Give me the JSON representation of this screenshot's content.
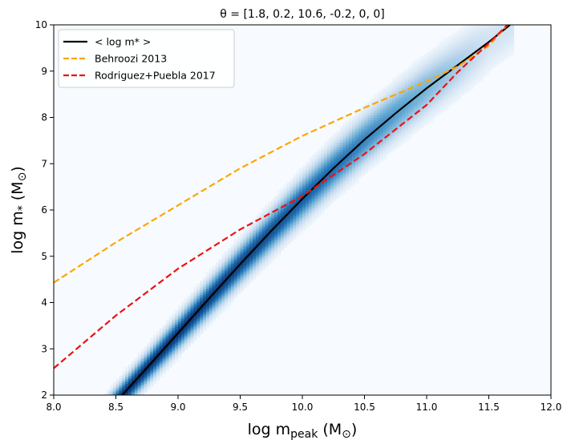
{
  "chart_data": {
    "type": "line",
    "title": "θ = [1.8, 0.2, 10.6, -0.2, 0, 0]",
    "xlabel": "log m",
    "xlabel_sub": "peak",
    "xlabel_unit": "(M",
    "xlabel_unit_sub": "⊙",
    "xlabel_close": ")",
    "ylabel": "log m",
    "ylabel_sub": "*",
    "ylabel_unit": "(M",
    "ylabel_unit_sub": "⊙",
    "ylabel_close": ")",
    "xlim": [
      8.0,
      12.0
    ],
    "ylim": [
      2,
      10
    ],
    "xticks": [
      "8.0",
      "8.5",
      "9.0",
      "9.5",
      "10.0",
      "10.5",
      "11.0",
      "11.5",
      "12.0"
    ],
    "yticks": [
      "2",
      "3",
      "4",
      "5",
      "6",
      "7",
      "8",
      "9",
      "10"
    ],
    "grid": false,
    "legend_position": "top-left",
    "background_heatmap": {
      "colormap": "Blues",
      "description_ridge_x": [
        8.3,
        11.7
      ]
    },
    "series": [
      {
        "name": "< log m* >",
        "color": "#000000",
        "style": "solid",
        "x": [
          8.55,
          8.75,
          9.0,
          9.25,
          9.5,
          9.75,
          10.0,
          10.25,
          10.5,
          10.75,
          11.0,
          11.25,
          11.5,
          11.67
        ],
        "y": [
          2.0,
          2.59,
          3.34,
          4.09,
          4.83,
          5.55,
          6.24,
          6.9,
          7.52,
          8.09,
          8.63,
          9.13,
          9.63,
          10.0
        ]
      },
      {
        "name": "Behroozi 2013",
        "color": "#FFA500",
        "style": "dashed",
        "x": [
          8.0,
          8.5,
          9.0,
          9.5,
          10.0,
          10.5,
          11.0,
          11.25,
          11.5,
          11.65
        ],
        "y": [
          4.43,
          5.3,
          6.1,
          6.9,
          7.6,
          8.21,
          8.78,
          9.1,
          9.55,
          10.0
        ]
      },
      {
        "name": "Rodriguez+Puebla 2017",
        "color": "#EE1111",
        "style": "dashed",
        "x": [
          8.0,
          8.5,
          9.0,
          9.5,
          10.0,
          10.5,
          11.0,
          11.25,
          11.5,
          11.65
        ],
        "y": [
          2.58,
          3.72,
          4.73,
          5.58,
          6.3,
          7.21,
          8.27,
          8.98,
          9.6,
          10.0
        ]
      }
    ]
  }
}
